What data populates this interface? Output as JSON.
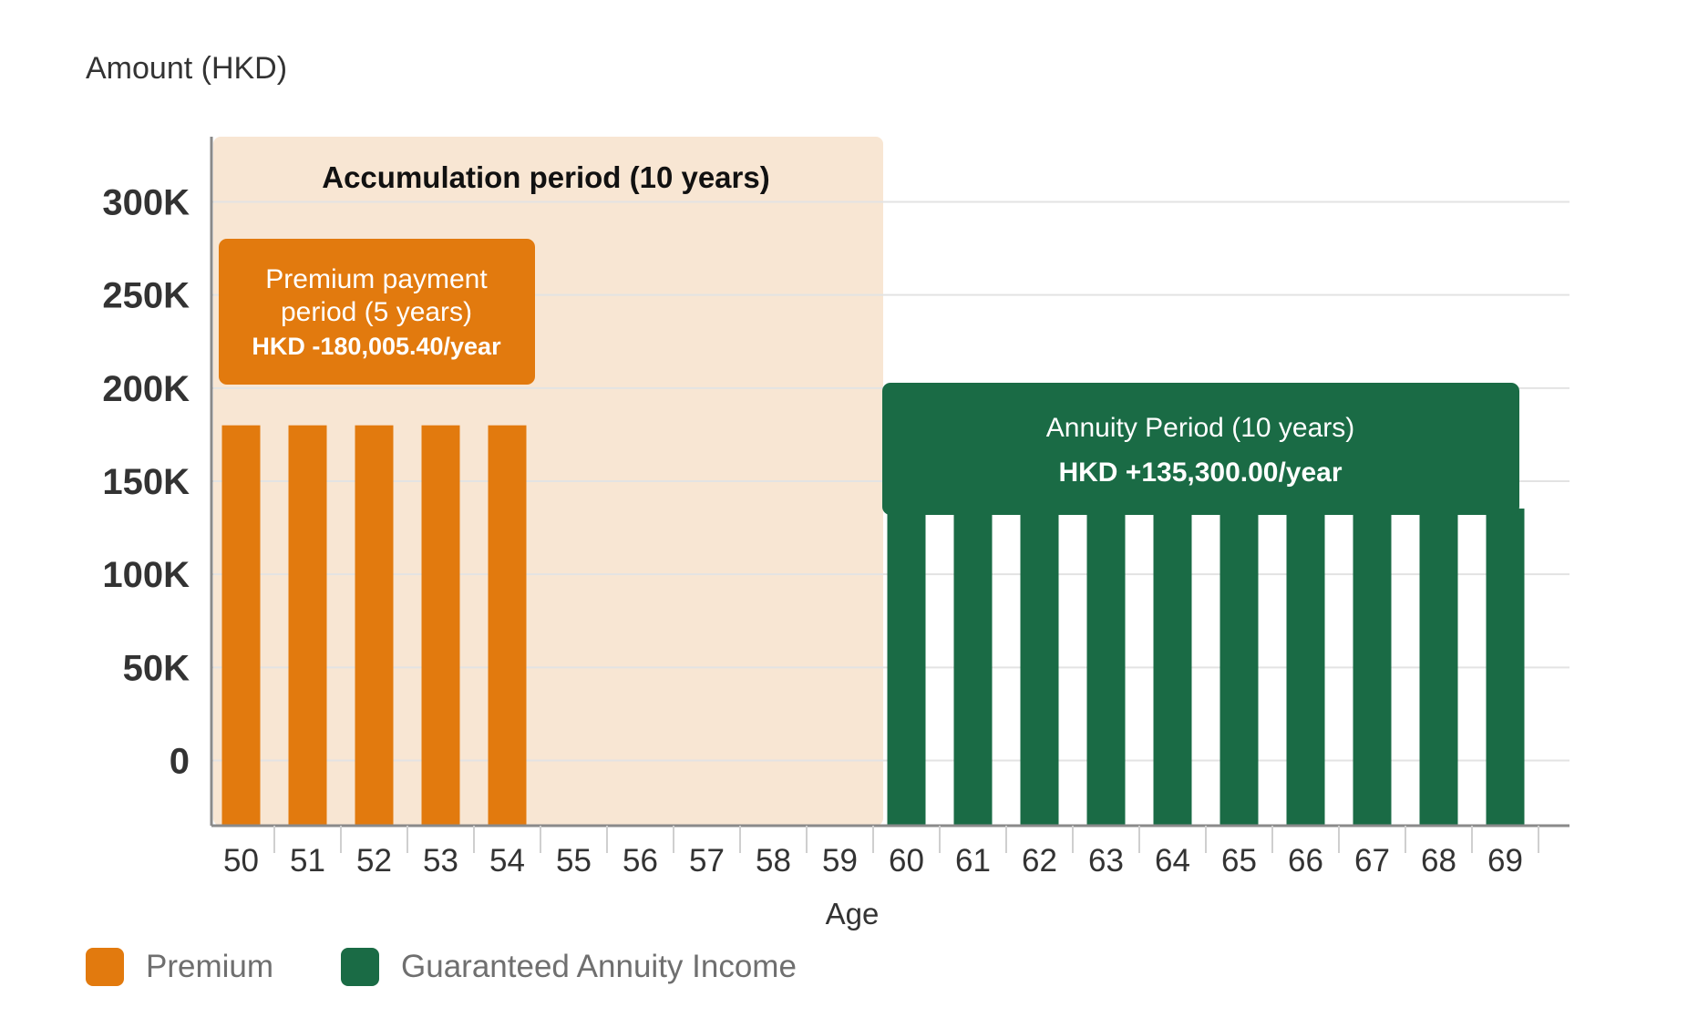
{
  "colors": {
    "premium": "#E27A0E",
    "annuity": "#1A6B45",
    "accumulation_bg": "#F8E6D3",
    "grid": "#E3E3E3",
    "axis": "#8A8A8A"
  },
  "chart_data": {
    "type": "bar",
    "ylabel": "Amount (HKD)",
    "xlabel": "Age",
    "ylim": [
      -35000,
      335000
    ],
    "yticks": [
      0,
      50000,
      100000,
      150000,
      200000,
      250000,
      300000
    ],
    "ytick_labels": [
      "0",
      "50K",
      "100K",
      "150K",
      "200K",
      "250K",
      "300K"
    ],
    "categories": [
      "50",
      "51",
      "52",
      "53",
      "54",
      "55",
      "56",
      "57",
      "58",
      "59",
      "60",
      "61",
      "62",
      "63",
      "64",
      "65",
      "66",
      "67",
      "68",
      "69"
    ],
    "series": [
      {
        "name": "Premium",
        "color_key": "premium",
        "values": [
          180005.4,
          180005.4,
          180005.4,
          180005.4,
          180005.4,
          null,
          null,
          null,
          null,
          null,
          null,
          null,
          null,
          null,
          null,
          null,
          null,
          null,
          null,
          null
        ]
      },
      {
        "name": "Guaranteed Annuity Income",
        "color_key": "annuity",
        "values": [
          null,
          null,
          null,
          null,
          null,
          null,
          null,
          null,
          null,
          null,
          135300,
          135300,
          135300,
          135300,
          135300,
          135300,
          135300,
          135300,
          135300,
          135300
        ]
      }
    ],
    "annotations": {
      "accumulation": {
        "label": "Accumulation period (10 years)",
        "from_age": "50",
        "to_age": "59"
      },
      "premium_box": {
        "line1": "Premium payment",
        "line2": "period (5 years)",
        "line3": "HKD -180,005.40/year"
      },
      "annuity_box": {
        "line1": "Annuity Period (10 years)",
        "line2": "HKD +135,300.00/year"
      }
    }
  },
  "legend": [
    {
      "label": "Premium",
      "color_key": "premium"
    },
    {
      "label": "Guaranteed Annuity Income",
      "color_key": "annuity"
    }
  ]
}
